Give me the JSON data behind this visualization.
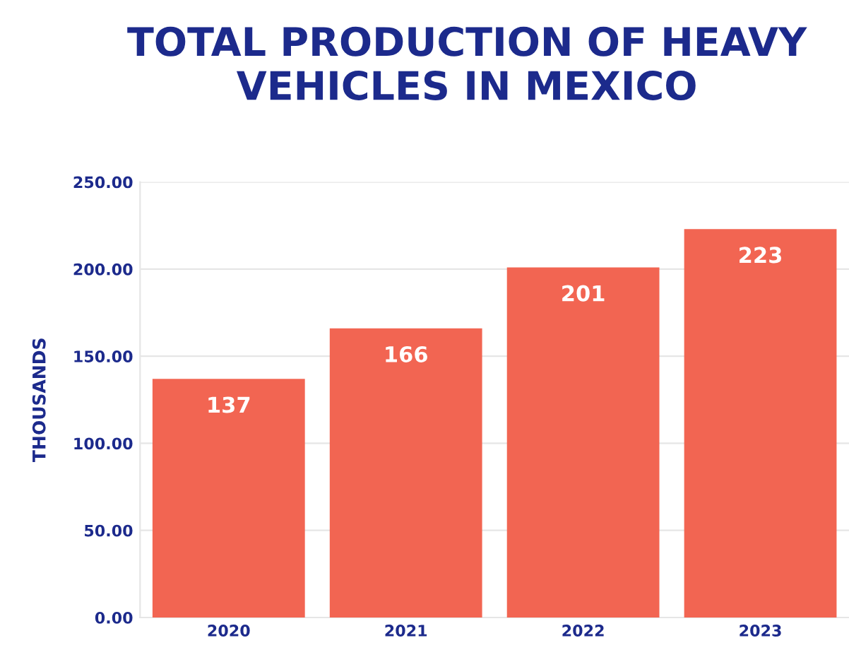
{
  "chart_data": {
    "type": "bar",
    "title": "TOTAL PRODUCTION OF HEAVY\nVEHICLES IN MEXICO",
    "ylabel": "THOUSANDS",
    "categories": [
      "2020",
      "2021",
      "2022",
      "2023"
    ],
    "values": [
      137,
      166,
      201,
      223
    ],
    "color": "#f26552",
    "ylim": [
      0,
      250
    ],
    "yticks": [
      {
        "value": 0,
        "label": "0.00"
      },
      {
        "value": 50,
        "label": "50.00"
      },
      {
        "value": 100,
        "label": "100.00"
      },
      {
        "value": 150,
        "label": "150.00"
      },
      {
        "value": 200,
        "label": "200.00"
      },
      {
        "value": 250,
        "label": "250.00"
      }
    ],
    "grid": "y",
    "data_labels": true
  }
}
